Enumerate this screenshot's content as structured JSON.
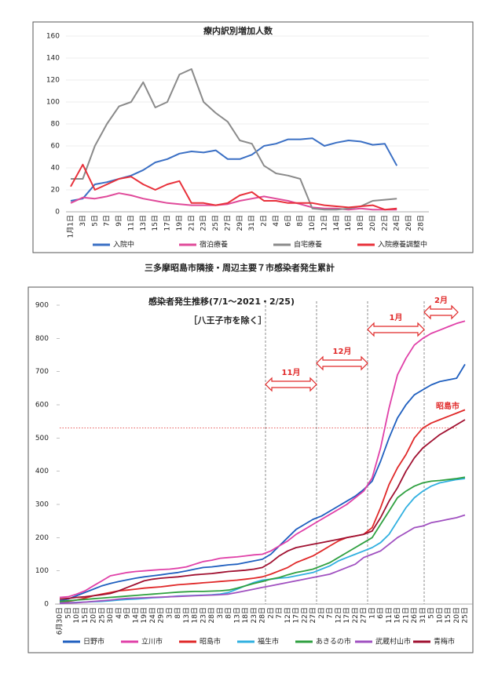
{
  "section_heading": "三多摩昭島市隣接・周辺主要７市感染者発生累計",
  "chart_data": [
    {
      "type": "line",
      "title": "療内訳別増加人数",
      "categories": [
        "1月1日",
        "3日",
        "5日",
        "7日",
        "9日",
        "11日",
        "13日",
        "15日",
        "17日",
        "19日",
        "21日",
        "23日",
        "25日",
        "27日",
        "29日",
        "31日",
        "2日",
        "4日",
        "6日",
        "8日",
        "10日",
        "12日",
        "14日",
        "16日",
        "18日",
        "20日",
        "22日",
        "24日",
        "26日",
        "28日"
      ],
      "series": [
        {
          "name": "入院中",
          "color": "#3a6fc4",
          "values": [
            10,
            12,
            25,
            27,
            30,
            33,
            38,
            45,
            48,
            53,
            55,
            54,
            56,
            48,
            48,
            52,
            60,
            62,
            66,
            66,
            67,
            60,
            63,
            65,
            64,
            61,
            62,
            42,
            null,
            null
          ]
        },
        {
          "name": "宿泊療養",
          "color": "#e04a9a",
          "values": [
            8,
            13,
            12,
            14,
            17,
            15,
            12,
            10,
            8,
            7,
            6,
            6,
            6,
            7,
            10,
            12,
            14,
            12,
            10,
            7,
            4,
            3,
            3,
            2,
            3,
            2,
            2,
            2,
            null,
            null
          ]
        },
        {
          "name": "自宅療養",
          "color": "#8a8a8a",
          "values": [
            30,
            30,
            60,
            80,
            96,
            100,
            118,
            95,
            100,
            125,
            130,
            100,
            90,
            82,
            65,
            62,
            42,
            35,
            33,
            30,
            3,
            2,
            2,
            3,
            5,
            10,
            11,
            12,
            null,
            null
          ]
        },
        {
          "name": "入院療養調整中",
          "color": "#e8303a",
          "values": [
            23,
            43,
            20,
            25,
            30,
            32,
            25,
            20,
            25,
            28,
            8,
            8,
            6,
            8,
            15,
            18,
            10,
            10,
            8,
            8,
            8,
            6,
            5,
            4,
            5,
            6,
            2,
            3,
            null,
            null
          ]
        }
      ],
      "ylim": [
        0,
        160
      ],
      "yticks": [
        0,
        20,
        40,
        60,
        80,
        100,
        120,
        140,
        160
      ],
      "grid": true,
      "legend": "bottom"
    },
    {
      "type": "line",
      "title": "感染者発生推移(7/1～2021・2/25)",
      "subtitle": "［八王子市を除く］",
      "categories": [
        "6月30日",
        "5日",
        "10日",
        "15日",
        "20日",
        "25日",
        "30日",
        "4日",
        "9日",
        "14日",
        "19日",
        "24日",
        "29日",
        "3日",
        "8日",
        "13日",
        "18日",
        "23日",
        "28日",
        "3日",
        "8日",
        "13日",
        "18日",
        "23日",
        "28日",
        "2日",
        "7日",
        "12日",
        "17日",
        "22日",
        "27日",
        "2日",
        "7日",
        "12日",
        "17日",
        "22日",
        "27日",
        "1日",
        "6日",
        "11日",
        "16日",
        "21日",
        "26日",
        "31日",
        "5日",
        "10日",
        "15日",
        "20日",
        "25日"
      ],
      "series": [
        {
          "name": "日野市",
          "color": "#1f5fbf",
          "values": [
            10,
            15,
            25,
            35,
            45,
            55,
            62,
            68,
            73,
            78,
            82,
            85,
            88,
            92,
            95,
            100,
            105,
            110,
            112,
            115,
            118,
            120,
            125,
            130,
            135,
            150,
            175,
            200,
            225,
            240,
            255,
            265,
            280,
            295,
            310,
            325,
            345,
            370,
            430,
            500,
            560,
            600,
            630,
            645,
            660,
            670,
            675,
            680,
            722
          ]
        },
        {
          "name": "立川市",
          "color": "#e040a8",
          "values": [
            20,
            22,
            30,
            40,
            55,
            70,
            85,
            90,
            95,
            98,
            100,
            102,
            104,
            105,
            108,
            112,
            120,
            128,
            132,
            138,
            140,
            142,
            145,
            148,
            150,
            160,
            175,
            190,
            210,
            225,
            240,
            255,
            270,
            285,
            300,
            320,
            340,
            380,
            470,
            590,
            690,
            740,
            780,
            800,
            815,
            825,
            835,
            845,
            852
          ]
        },
        {
          "name": "昭島市",
          "color": "#e02828",
          "values": [
            5,
            8,
            12,
            18,
            25,
            30,
            35,
            40,
            42,
            45,
            48,
            50,
            52,
            55,
            58,
            60,
            62,
            64,
            66,
            68,
            70,
            72,
            75,
            78,
            82,
            90,
            100,
            110,
            125,
            135,
            145,
            160,
            175,
            190,
            200,
            205,
            210,
            230,
            290,
            360,
            410,
            450,
            500,
            530,
            545,
            555,
            565,
            575,
            585
          ]
        },
        {
          "name": "福生市",
          "color": "#30b0e0",
          "values": [
            3,
            4,
            5,
            6,
            7,
            8,
            10,
            12,
            14,
            15,
            17,
            19,
            20,
            22,
            24,
            25,
            26,
            27,
            28,
            30,
            35,
            45,
            55,
            65,
            72,
            75,
            78,
            80,
            85,
            90,
            95,
            105,
            115,
            130,
            140,
            150,
            160,
            170,
            185,
            210,
            250,
            290,
            320,
            340,
            355,
            365,
            370,
            375,
            378
          ]
        },
        {
          "name": "あきるの市",
          "color": "#2fa040",
          "values": [
            8,
            10,
            12,
            14,
            16,
            18,
            20,
            22,
            24,
            26,
            28,
            30,
            32,
            34,
            36,
            37,
            38,
            38,
            39,
            40,
            42,
            48,
            55,
            62,
            68,
            75,
            80,
            88,
            95,
            100,
            105,
            115,
            125,
            140,
            155,
            170,
            185,
            200,
            240,
            280,
            320,
            340,
            355,
            365,
            370,
            372,
            375,
            378,
            382
          ]
        },
        {
          "name": "武蔵村山市",
          "color": "#a050c0",
          "values": [
            2,
            3,
            4,
            6,
            8,
            10,
            12,
            15,
            17,
            18,
            19,
            20,
            21,
            22,
            23,
            24,
            25,
            26,
            27,
            28,
            30,
            35,
            40,
            45,
            50,
            55,
            60,
            65,
            70,
            75,
            80,
            85,
            90,
            100,
            110,
            120,
            140,
            150,
            160,
            180,
            200,
            215,
            230,
            235,
            245,
            250,
            255,
            260,
            268
          ]
        },
        {
          "name": "青梅市",
          "color": "#a01030",
          "values": [
            15,
            17,
            20,
            22,
            25,
            28,
            32,
            40,
            50,
            60,
            70,
            75,
            78,
            80,
            82,
            85,
            88,
            90,
            92,
            95,
            98,
            100,
            102,
            105,
            110,
            125,
            145,
            160,
            170,
            175,
            180,
            185,
            190,
            195,
            200,
            205,
            210,
            220,
            260,
            310,
            350,
            400,
            440,
            470,
            490,
            510,
            525,
            540,
            555
          ]
        }
      ],
      "ylim": [
        0,
        900
      ],
      "yticks": [
        0,
        100,
        200,
        300,
        400,
        500,
        600,
        700,
        800,
        900
      ],
      "grid": false,
      "legend": "bottom",
      "reference_line": 530,
      "annotations": [
        "11月",
        "12月",
        "1月",
        "2月",
        "昭島市"
      ]
    }
  ]
}
